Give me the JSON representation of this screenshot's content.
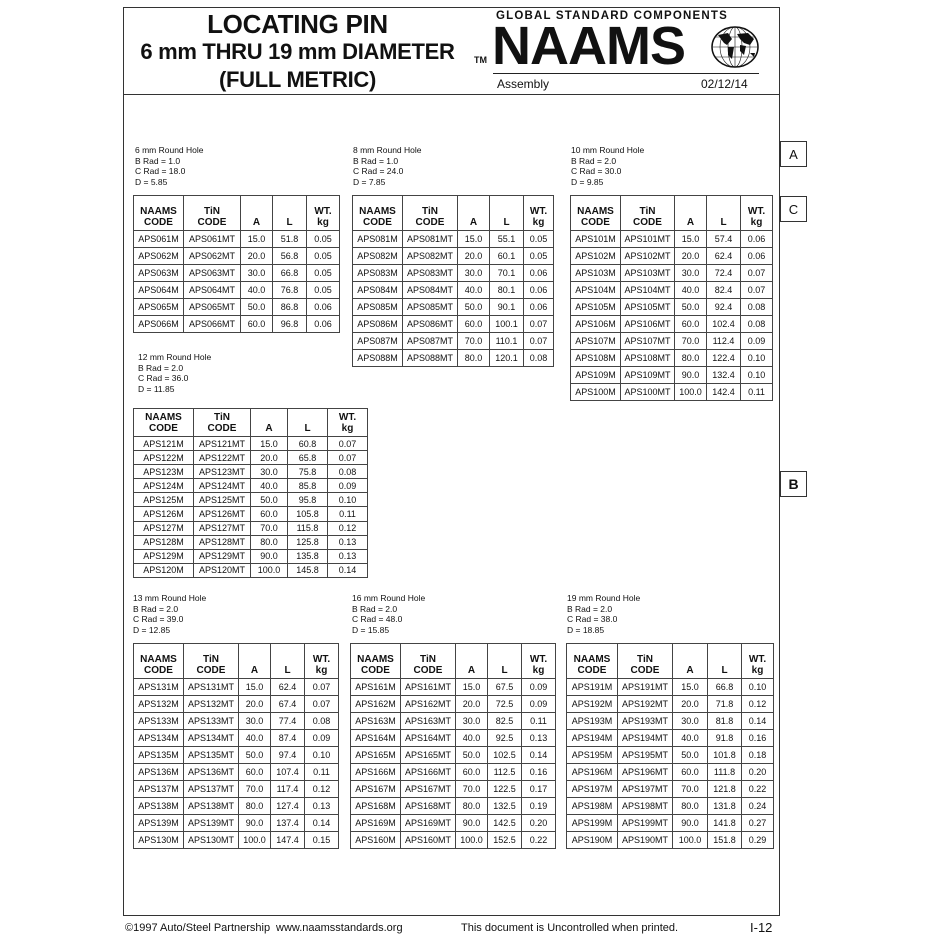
{
  "header": {
    "title_line1": "LOCATING PIN",
    "title_line2": "6 mm THRU 19 mm DIAMETER",
    "title_line3": "(FULL METRIC)",
    "logo_tagline": "GLOBAL STANDARD COMPONENTS",
    "logo_text": "NAAMS",
    "trademark": "TM",
    "category": "Assembly",
    "date": "02/12/14"
  },
  "side_tabs": [
    "A",
    "C",
    "B"
  ],
  "table_headers": [
    [
      "NAAMS",
      "CODE"
    ],
    [
      "TiN",
      "CODE"
    ],
    [
      "",
      "A"
    ],
    [
      "",
      "L"
    ],
    [
      "WT.",
      "kg"
    ]
  ],
  "sections": [
    {
      "title": "6 mm Round Hole",
      "b_rad": "B Rad = 1.0",
      "c_rad": "C Rad = 18.0",
      "d": "D = 5.85",
      "rows": [
        [
          "APS061M",
          "APS061MT",
          "15.0",
          "51.8",
          "0.05"
        ],
        [
          "APS062M",
          "APS062MT",
          "20.0",
          "56.8",
          "0.05"
        ],
        [
          "APS063M",
          "APS063MT",
          "30.0",
          "66.8",
          "0.05"
        ],
        [
          "APS064M",
          "APS064MT",
          "40.0",
          "76.8",
          "0.05"
        ],
        [
          "APS065M",
          "APS065MT",
          "50.0",
          "86.8",
          "0.06"
        ],
        [
          "APS066M",
          "APS066MT",
          "60.0",
          "96.8",
          "0.06"
        ]
      ]
    },
    {
      "title": "8 mm Round Hole",
      "b_rad": "B Rad = 1.0",
      "c_rad": "C Rad = 24.0",
      "d": "D = 7.85",
      "rows": [
        [
          "APS081M",
          "APS081MT",
          "15.0",
          "55.1",
          "0.05"
        ],
        [
          "APS082M",
          "APS082MT",
          "20.0",
          "60.1",
          "0.05"
        ],
        [
          "APS083M",
          "APS083MT",
          "30.0",
          "70.1",
          "0.06"
        ],
        [
          "APS084M",
          "APS084MT",
          "40.0",
          "80.1",
          "0.06"
        ],
        [
          "APS085M",
          "APS085MT",
          "50.0",
          "90.1",
          "0.06"
        ],
        [
          "APS086M",
          "APS086MT",
          "60.0",
          "100.1",
          "0.07"
        ],
        [
          "APS087M",
          "APS087MT",
          "70.0",
          "110.1",
          "0.07"
        ],
        [
          "APS088M",
          "APS088MT",
          "80.0",
          "120.1",
          "0.08"
        ]
      ]
    },
    {
      "title": "10 mm Round Hole",
      "b_rad": "B Rad = 2.0",
      "c_rad": "C Rad = 30.0",
      "d": "D = 9.85",
      "rows": [
        [
          "APS101M",
          "APS101MT",
          "15.0",
          "57.4",
          "0.06"
        ],
        [
          "APS102M",
          "APS102MT",
          "20.0",
          "62.4",
          "0.06"
        ],
        [
          "APS103M",
          "APS103MT",
          "30.0",
          "72.4",
          "0.07"
        ],
        [
          "APS104M",
          "APS104MT",
          "40.0",
          "82.4",
          "0.07"
        ],
        [
          "APS105M",
          "APS105MT",
          "50.0",
          "92.4",
          "0.08"
        ],
        [
          "APS106M",
          "APS106MT",
          "60.0",
          "102.4",
          "0.08"
        ],
        [
          "APS107M",
          "APS107MT",
          "70.0",
          "112.4",
          "0.09"
        ],
        [
          "APS108M",
          "APS108MT",
          "80.0",
          "122.4",
          "0.10"
        ],
        [
          "APS109M",
          "APS109MT",
          "90.0",
          "132.4",
          "0.10"
        ],
        [
          "APS100M",
          "APS100MT",
          "100.0",
          "142.4",
          "0.11"
        ]
      ]
    },
    {
      "title": "12 mm Round Hole",
      "b_rad": "B Rad = 2.0",
      "c_rad": "C Rad = 36.0",
      "d": "D = 11.85",
      "rows": [
        [
          "APS121M",
          "APS121MT",
          "15.0",
          "60.8",
          "0.07"
        ],
        [
          "APS122M",
          "APS122MT",
          "20.0",
          "65.8",
          "0.07"
        ],
        [
          "APS123M",
          "APS123MT",
          "30.0",
          "75.8",
          "0.08"
        ],
        [
          "APS124M",
          "APS124MT",
          "40.0",
          "85.8",
          "0.09"
        ],
        [
          "APS125M",
          "APS125MT",
          "50.0",
          "95.8",
          "0.10"
        ],
        [
          "APS126M",
          "APS126MT",
          "60.0",
          "105.8",
          "0.11"
        ],
        [
          "APS127M",
          "APS127MT",
          "70.0",
          "115.8",
          "0.12"
        ],
        [
          "APS128M",
          "APS128MT",
          "80.0",
          "125.8",
          "0.13"
        ],
        [
          "APS129M",
          "APS129MT",
          "90.0",
          "135.8",
          "0.13"
        ],
        [
          "APS120M",
          "APS120MT",
          "100.0",
          "145.8",
          "0.14"
        ]
      ]
    },
    {
      "title": "13 mm Round Hole",
      "b_rad": "B Rad = 2.0",
      "c_rad": "C Rad = 39.0",
      "d": "D = 12.85",
      "rows": [
        [
          "APS131M",
          "APS131MT",
          "15.0",
          "62.4",
          "0.07"
        ],
        [
          "APS132M",
          "APS132MT",
          "20.0",
          "67.4",
          "0.07"
        ],
        [
          "APS133M",
          "APS133MT",
          "30.0",
          "77.4",
          "0.08"
        ],
        [
          "APS134M",
          "APS134MT",
          "40.0",
          "87.4",
          "0.09"
        ],
        [
          "APS135M",
          "APS135MT",
          "50.0",
          "97.4",
          "0.10"
        ],
        [
          "APS136M",
          "APS136MT",
          "60.0",
          "107.4",
          "0.11"
        ],
        [
          "APS137M",
          "APS137MT",
          "70.0",
          "117.4",
          "0.12"
        ],
        [
          "APS138M",
          "APS138MT",
          "80.0",
          "127.4",
          "0.13"
        ],
        [
          "APS139M",
          "APS139MT",
          "90.0",
          "137.4",
          "0.14"
        ],
        [
          "APS130M",
          "APS130MT",
          "100.0",
          "147.4",
          "0.15"
        ]
      ]
    },
    {
      "title": "16 mm Round Hole",
      "b_rad": "B Rad = 2.0",
      "c_rad": "C Rad = 48.0",
      "d": "D = 15.85",
      "rows": [
        [
          "APS161M",
          "APS161MT",
          "15.0",
          "67.5",
          "0.09"
        ],
        [
          "APS162M",
          "APS162MT",
          "20.0",
          "72.5",
          "0.09"
        ],
        [
          "APS163M",
          "APS163MT",
          "30.0",
          "82.5",
          "0.11"
        ],
        [
          "APS164M",
          "APS164MT",
          "40.0",
          "92.5",
          "0.13"
        ],
        [
          "APS165M",
          "APS165MT",
          "50.0",
          "102.5",
          "0.14"
        ],
        [
          "APS166M",
          "APS166MT",
          "60.0",
          "112.5",
          "0.16"
        ],
        [
          "APS167M",
          "APS167MT",
          "70.0",
          "122.5",
          "0.17"
        ],
        [
          "APS168M",
          "APS168MT",
          "80.0",
          "132.5",
          "0.19"
        ],
        [
          "APS169M",
          "APS169MT",
          "90.0",
          "142.5",
          "0.20"
        ],
        [
          "APS160M",
          "APS160MT",
          "100.0",
          "152.5",
          "0.22"
        ]
      ]
    },
    {
      "title": "19 mm Round Hole",
      "b_rad": "B Rad = 2.0",
      "c_rad": "C Rad = 38.0",
      "d": "D = 18.85",
      "rows": [
        [
          "APS191M",
          "APS191MT",
          "15.0",
          "66.8",
          "0.10"
        ],
        [
          "APS192M",
          "APS192MT",
          "20.0",
          "71.8",
          "0.12"
        ],
        [
          "APS193M",
          "APS193MT",
          "30.0",
          "81.8",
          "0.14"
        ],
        [
          "APS194M",
          "APS194MT",
          "40.0",
          "91.8",
          "0.16"
        ],
        [
          "APS195M",
          "APS195MT",
          "50.0",
          "101.8",
          "0.18"
        ],
        [
          "APS196M",
          "APS196MT",
          "60.0",
          "111.8",
          "0.20"
        ],
        [
          "APS197M",
          "APS197MT",
          "70.0",
          "121.8",
          "0.22"
        ],
        [
          "APS198M",
          "APS198MT",
          "80.0",
          "131.8",
          "0.24"
        ],
        [
          "APS199M",
          "APS199MT",
          "90.0",
          "141.8",
          "0.27"
        ],
        [
          "APS190M",
          "APS190MT",
          "100.0",
          "151.8",
          "0.29"
        ]
      ]
    }
  ],
  "footer": {
    "copyright": "©1997 Auto/Steel Partnership",
    "website": "www.naamsstandards.org",
    "notice": "This document is Uncontrolled when printed.",
    "page": "I-12"
  }
}
